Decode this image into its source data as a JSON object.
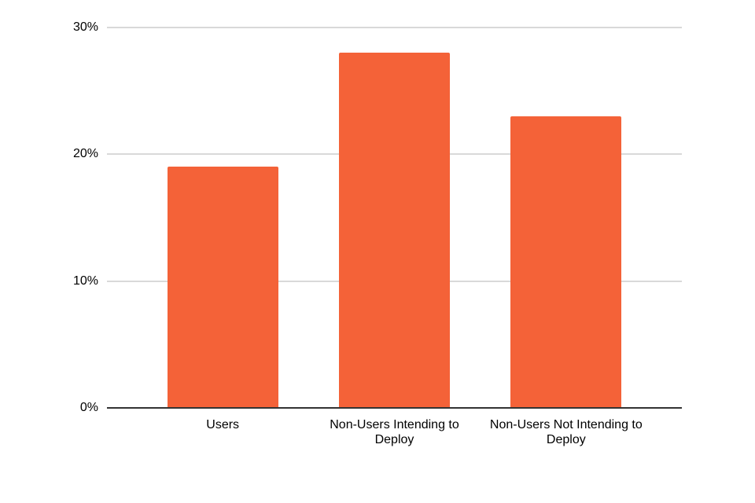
{
  "chart_data": {
    "type": "bar",
    "title": "",
    "xlabel": "",
    "ylabel": "",
    "categories": [
      "Users",
      "Non-Users Intending to Deploy",
      "Non-Users Not Intending to Deploy"
    ],
    "values": [
      19,
      28,
      23
    ],
    "value_format": "percent",
    "yticks": [
      {
        "value": 0,
        "label": "0%"
      },
      {
        "value": 10,
        "label": "10%"
      },
      {
        "value": 20,
        "label": "20%"
      },
      {
        "value": 30,
        "label": "30%"
      }
    ],
    "ylim": [
      0,
      30
    ],
    "grid": true,
    "legend_position": "none",
    "colors": {
      "bar": "#F46238",
      "gridline": "#D9D9D9",
      "axis": "#333333",
      "text": "#000000",
      "background": "#FFFFFF"
    }
  }
}
